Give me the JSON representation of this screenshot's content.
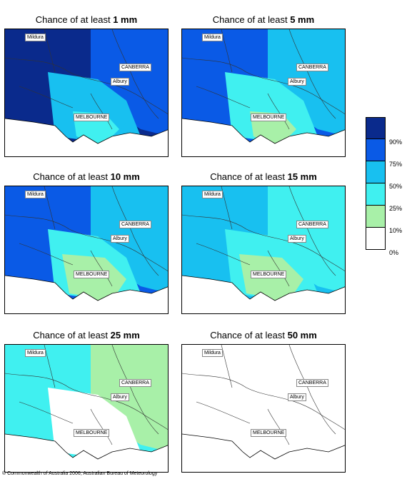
{
  "title_prefix": "Chance of at least",
  "panels": [
    {
      "amount": "1 mm",
      "levels": [
        5,
        4,
        3,
        3,
        2
      ]
    },
    {
      "amount": "5 mm",
      "levels": [
        4,
        3,
        2,
        2,
        1
      ]
    },
    {
      "amount": "10 mm",
      "levels": [
        4,
        3,
        2,
        1,
        1
      ]
    },
    {
      "amount": "15 mm",
      "levels": [
        3,
        2,
        2,
        1,
        1
      ]
    },
    {
      "amount": "25 mm",
      "levels": [
        2,
        1,
        0,
        0,
        0
      ]
    },
    {
      "amount": "50 mm",
      "levels": [
        0,
        0,
        0,
        0,
        0
      ]
    }
  ],
  "places": {
    "mildura": "Mildura",
    "canberra": "CANBERRA",
    "albury": "Albury",
    "melbourne": "MELBOURNE"
  },
  "legend": {
    "labels": [
      "90%",
      "75%",
      "50%",
      "25%",
      "10%",
      "0%"
    ],
    "colors": [
      "#0a2a8c",
      "#0a5ae6",
      "#18c0f0",
      "#40f0f0",
      "#a8f0a8",
      "#ffffff"
    ]
  },
  "copyright": "© Commonwealth of Australia 2006, Australian Bureau of Meteorology"
}
